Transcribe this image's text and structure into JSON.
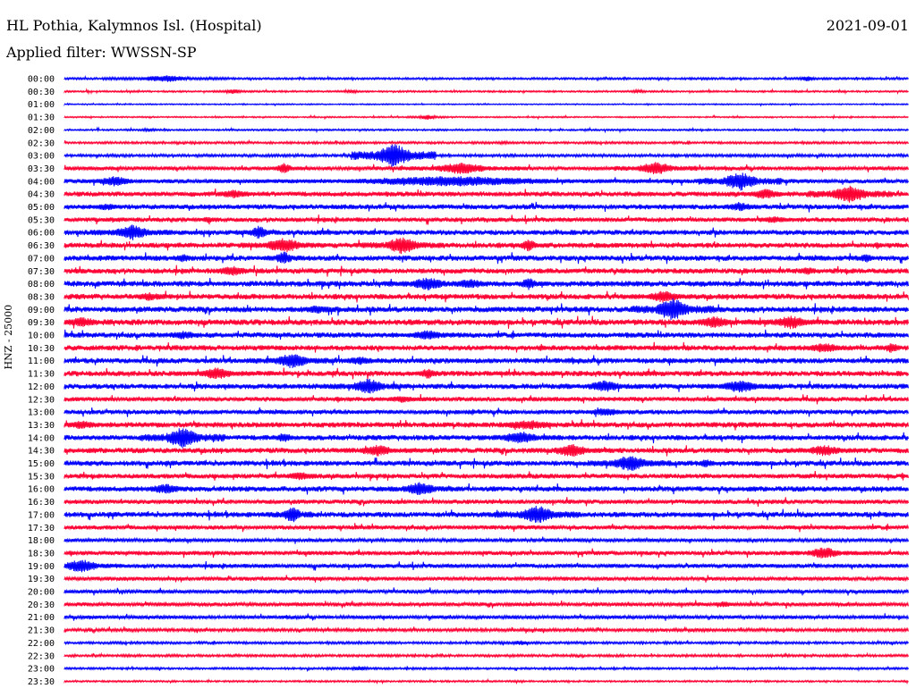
{
  "header": {
    "station": "HL Pothia, Kalymnos Isl. (Hospital)",
    "date": "2021-09-01",
    "filter": "Applied filter: WWSSN-SP"
  },
  "chart_data": {
    "type": "line",
    "title": "HL Pothia, Kalymnos Isl. (Hospital)",
    "subtitle": "Applied filter: WWSSN-SP",
    "date": "2021-09-01",
    "ylabel": "HNZ - 25000",
    "xlabel": "",
    "colors": {
      "odd": "#0000ff",
      "even": "#ff0033"
    },
    "rows": [
      {
        "label": "00:00",
        "color": "#0000ff",
        "amp": 1.2,
        "bursts": [
          [
            0.12,
            4,
            0.03
          ],
          [
            0.88,
            3,
            0.01
          ]
        ]
      },
      {
        "label": "00:30",
        "color": "#ff0033",
        "amp": 1.0,
        "bursts": [
          [
            0.2,
            3,
            0.01
          ],
          [
            0.34,
            2,
            0.01
          ],
          [
            0.68,
            2,
            0.01
          ]
        ]
      },
      {
        "label": "01:00",
        "color": "#0000ff",
        "amp": 0.7,
        "bursts": []
      },
      {
        "label": "01:30",
        "color": "#ff0033",
        "amp": 0.8,
        "bursts": [
          [
            0.43,
            3,
            0.01
          ]
        ]
      },
      {
        "label": "02:00",
        "color": "#0000ff",
        "amp": 1.0,
        "bursts": [
          [
            0.1,
            2,
            0.01
          ]
        ]
      },
      {
        "label": "02:30",
        "color": "#ff0033",
        "amp": 1.3,
        "bursts": [
          [
            0.52,
            2,
            0.01
          ]
        ]
      },
      {
        "label": "03:00",
        "color": "#0000ff",
        "amp": 1.6,
        "bursts": [
          [
            0.39,
            14,
            0.02
          ]
        ]
      },
      {
        "label": "03:30",
        "color": "#ff0033",
        "amp": 2.2,
        "bursts": [
          [
            0.26,
            6,
            0.01
          ],
          [
            0.47,
            7,
            0.03
          ],
          [
            0.7,
            8,
            0.02
          ]
        ]
      },
      {
        "label": "04:00",
        "color": "#0000ff",
        "amp": 2.4,
        "bursts": [
          [
            0.06,
            6,
            0.02
          ],
          [
            0.46,
            6,
            0.12
          ],
          [
            0.8,
            11,
            0.02
          ]
        ]
      },
      {
        "label": "04:30",
        "color": "#ff0033",
        "amp": 2.8,
        "bursts": [
          [
            0.2,
            5,
            0.02
          ],
          [
            0.83,
            6,
            0.02
          ],
          [
            0.93,
            11,
            0.02
          ]
        ]
      },
      {
        "label": "05:00",
        "color": "#0000ff",
        "amp": 2.8,
        "bursts": [
          [
            0.05,
            4,
            0.02
          ],
          [
            0.8,
            5,
            0.02
          ]
        ]
      },
      {
        "label": "05:30",
        "color": "#ff0033",
        "amp": 2.6,
        "bursts": [
          [
            0.17,
            4,
            0.01
          ],
          [
            0.84,
            4,
            0.02
          ]
        ]
      },
      {
        "label": "06:00",
        "color": "#0000ff",
        "amp": 2.9,
        "bursts": [
          [
            0.08,
            9,
            0.02
          ],
          [
            0.23,
            8,
            0.01
          ]
        ]
      },
      {
        "label": "06:30",
        "color": "#ff0033",
        "amp": 3.0,
        "bursts": [
          [
            0.26,
            9,
            0.02
          ],
          [
            0.4,
            10,
            0.02
          ],
          [
            0.55,
            7,
            0.01
          ]
        ]
      },
      {
        "label": "07:00",
        "color": "#0000ff",
        "amp": 3.0,
        "bursts": [
          [
            0.14,
            5,
            0.01
          ],
          [
            0.26,
            8,
            0.01
          ],
          [
            0.95,
            5,
            0.01
          ]
        ]
      },
      {
        "label": "07:30",
        "color": "#ff0033",
        "amp": 3.0,
        "bursts": [
          [
            0.2,
            6,
            0.02
          ],
          [
            0.88,
            5,
            0.01
          ]
        ]
      },
      {
        "label": "08:00",
        "color": "#0000ff",
        "amp": 3.2,
        "bursts": [
          [
            0.43,
            8,
            0.02
          ],
          [
            0.48,
            6,
            0.02
          ],
          [
            0.55,
            7,
            0.01
          ]
        ]
      },
      {
        "label": "08:30",
        "color": "#ff0033",
        "amp": 3.1,
        "bursts": [
          [
            0.1,
            5,
            0.02
          ],
          [
            0.71,
            7,
            0.02
          ]
        ]
      },
      {
        "label": "09:00",
        "color": "#0000ff",
        "amp": 3.2,
        "bursts": [
          [
            0.3,
            5,
            0.02
          ],
          [
            0.72,
            13,
            0.02
          ]
        ]
      },
      {
        "label": "09:30",
        "color": "#ff0033",
        "amp": 3.3,
        "bursts": [
          [
            0.02,
            6,
            0.02
          ],
          [
            0.77,
            7,
            0.02
          ],
          [
            0.86,
            8,
            0.02
          ]
        ]
      },
      {
        "label": "10:00",
        "color": "#0000ff",
        "amp": 3.0,
        "bursts": [
          [
            0.14,
            5,
            0.02
          ],
          [
            0.43,
            6,
            0.02
          ]
        ]
      },
      {
        "label": "10:30",
        "color": "#ff0033",
        "amp": 3.0,
        "bursts": [
          [
            0.9,
            6,
            0.02
          ],
          [
            0.98,
            6,
            0.01
          ]
        ]
      },
      {
        "label": "11:00",
        "color": "#0000ff",
        "amp": 3.0,
        "bursts": [
          [
            0.27,
            9,
            0.02
          ],
          [
            0.35,
            5,
            0.02
          ]
        ]
      },
      {
        "label": "11:30",
        "color": "#ff0033",
        "amp": 3.0,
        "bursts": [
          [
            0.18,
            7,
            0.02
          ],
          [
            0.43,
            6,
            0.01
          ]
        ]
      },
      {
        "label": "12:00",
        "color": "#0000ff",
        "amp": 3.0,
        "bursts": [
          [
            0.36,
            9,
            0.02
          ],
          [
            0.64,
            7,
            0.02
          ],
          [
            0.8,
            8,
            0.02
          ]
        ]
      },
      {
        "label": "12:30",
        "color": "#ff0033",
        "amp": 2.6,
        "bursts": [
          [
            0.4,
            4,
            0.02
          ]
        ]
      },
      {
        "label": "13:00",
        "color": "#0000ff",
        "amp": 2.6,
        "bursts": [
          [
            0.64,
            5,
            0.02
          ]
        ]
      },
      {
        "label": "13:30",
        "color": "#ff0033",
        "amp": 3.0,
        "bursts": [
          [
            0.02,
            5,
            0.02
          ],
          [
            0.55,
            6,
            0.03
          ]
        ]
      },
      {
        "label": "14:00",
        "color": "#0000ff",
        "amp": 3.0,
        "bursts": [
          [
            0.14,
            12,
            0.02
          ],
          [
            0.26,
            6,
            0.01
          ],
          [
            0.54,
            8,
            0.02
          ]
        ]
      },
      {
        "label": "14:30",
        "color": "#ff0033",
        "amp": 3.0,
        "bursts": [
          [
            0.37,
            7,
            0.02
          ],
          [
            0.6,
            8,
            0.02
          ],
          [
            0.9,
            7,
            0.02
          ]
        ]
      },
      {
        "label": "15:00",
        "color": "#0000ff",
        "amp": 3.0,
        "bursts": [
          [
            0.67,
            10,
            0.02
          ],
          [
            0.76,
            5,
            0.01
          ]
        ]
      },
      {
        "label": "15:30",
        "color": "#ff0033",
        "amp": 2.7,
        "bursts": [
          [
            0.28,
            5,
            0.02
          ]
        ]
      },
      {
        "label": "16:00",
        "color": "#0000ff",
        "amp": 3.0,
        "bursts": [
          [
            0.12,
            6,
            0.02
          ],
          [
            0.42,
            8,
            0.02
          ]
        ]
      },
      {
        "label": "16:30",
        "color": "#ff0033",
        "amp": 2.5,
        "bursts": []
      },
      {
        "label": "17:00",
        "color": "#0000ff",
        "amp": 3.0,
        "bursts": [
          [
            0.27,
            10,
            0.01
          ],
          [
            0.56,
            11,
            0.02
          ]
        ]
      },
      {
        "label": "17:30",
        "color": "#ff0033",
        "amp": 2.4,
        "bursts": []
      },
      {
        "label": "18:00",
        "color": "#0000ff",
        "amp": 2.0,
        "bursts": []
      },
      {
        "label": "18:30",
        "color": "#ff0033",
        "amp": 2.4,
        "bursts": [
          [
            0.9,
            7,
            0.02
          ]
        ]
      },
      {
        "label": "19:00",
        "color": "#0000ff",
        "amp": 2.4,
        "bursts": [
          [
            0.02,
            8,
            0.02
          ]
        ]
      },
      {
        "label": "19:30",
        "color": "#ff0033",
        "amp": 2.2,
        "bursts": []
      },
      {
        "label": "20:00",
        "color": "#0000ff",
        "amp": 2.2,
        "bursts": []
      },
      {
        "label": "20:30",
        "color": "#ff0033",
        "amp": 2.2,
        "bursts": [
          [
            0.78,
            4,
            0.01
          ]
        ]
      },
      {
        "label": "21:00",
        "color": "#0000ff",
        "amp": 2.0,
        "bursts": []
      },
      {
        "label": "21:30",
        "color": "#ff0033",
        "amp": 1.8,
        "bursts": []
      },
      {
        "label": "22:00",
        "color": "#0000ff",
        "amp": 1.4,
        "bursts": [
          [
            0.54,
            3,
            0.01
          ]
        ]
      },
      {
        "label": "22:30",
        "color": "#ff0033",
        "amp": 1.4,
        "bursts": []
      },
      {
        "label": "23:00",
        "color": "#0000ff",
        "amp": 1.2,
        "bursts": [
          [
            0.35,
            3,
            0.01
          ]
        ]
      },
      {
        "label": "23:30",
        "color": "#ff0033",
        "amp": 1.0,
        "bursts": []
      }
    ]
  }
}
